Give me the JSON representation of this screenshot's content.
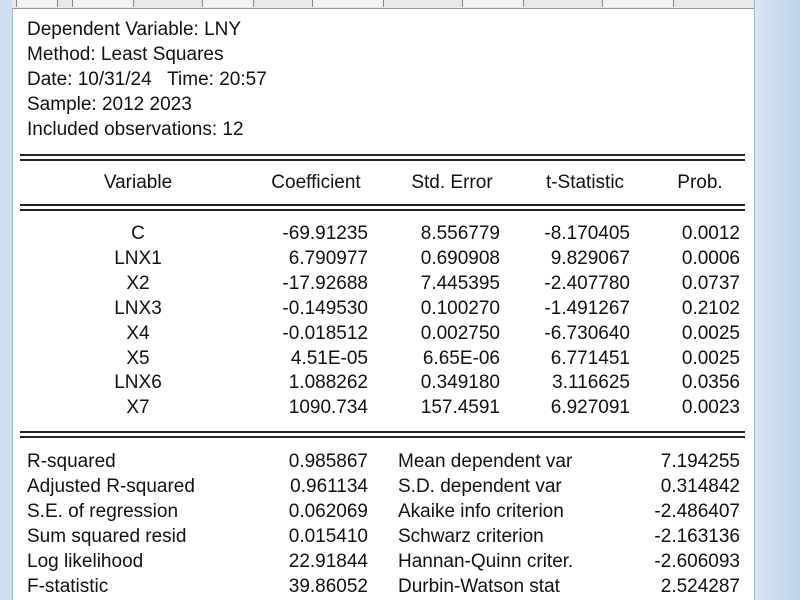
{
  "header": {
    "lines": [
      "Dependent Variable: LNY",
      "Method: Least Squares",
      "Date: 10/31/24   Time: 20:57",
      "Sample: 2012 2023",
      "Included observations: 12"
    ]
  },
  "table": {
    "columns": [
      "Variable",
      "Coefficient",
      "Std. Error",
      "t-Statistic",
      "Prob."
    ],
    "rows": [
      [
        "C",
        "-69.91235",
        "8.556779",
        "-8.170405",
        "0.0012"
      ],
      [
        "LNX1",
        "6.790977",
        "0.690908",
        "9.829067",
        "0.0006"
      ],
      [
        "X2",
        "-17.92688",
        "7.445395",
        "-2.407780",
        "0.0737"
      ],
      [
        "LNX3",
        "-0.149530",
        "0.100270",
        "-1.491267",
        "0.2102"
      ],
      [
        "X4",
        "-0.018512",
        "0.002750",
        "-6.730640",
        "0.0025"
      ],
      [
        "X5",
        "4.51E-05",
        "6.65E-06",
        "6.771451",
        "0.0025"
      ],
      [
        "LNX6",
        "1.088262",
        "0.349180",
        "3.116625",
        "0.0356"
      ],
      [
        "X7",
        "1090.734",
        "157.4591",
        "6.927091",
        "0.0023"
      ]
    ]
  },
  "stats": {
    "rows": [
      [
        "R-squared",
        "0.985867",
        "Mean dependent var",
        "7.194255"
      ],
      [
        "Adjusted R-squared",
        "0.961134",
        "S.D. dependent var",
        "0.314842"
      ],
      [
        "S.E. of regression",
        "0.062069",
        "Akaike info criterion",
        "-2.486407"
      ],
      [
        "Sum squared resid",
        "0.015410",
        "Schwarz criterion",
        "-2.163136"
      ],
      [
        "Log likelihood",
        "22.91844",
        "Hannan-Quinn criter.",
        "-2.606093"
      ],
      [
        "F-statistic",
        "39.86052",
        "Durbin-Watson stat",
        "2.524287"
      ]
    ]
  }
}
